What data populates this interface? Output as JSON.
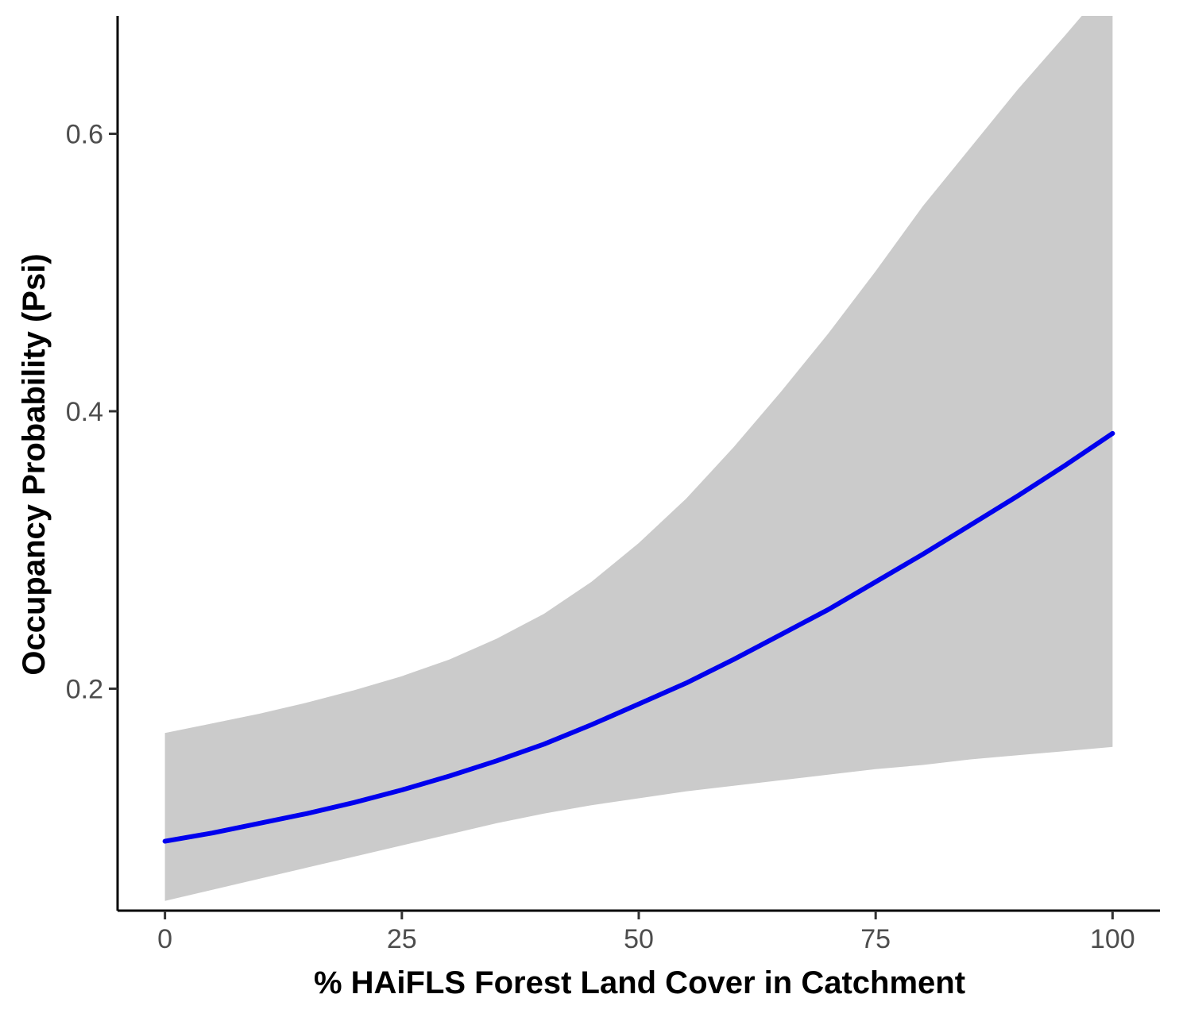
{
  "chart_data": {
    "type": "line",
    "title": "",
    "xlabel": "% HAiFLS Forest Land Cover in Catchment",
    "ylabel": "Occupancy Probability (Psi)",
    "xlim": [
      -5,
      105
    ],
    "ylim": [
      0.04,
      0.685
    ],
    "x_ticks": [
      0,
      25,
      50,
      75,
      100
    ],
    "x_tick_labels": [
      "0",
      "25",
      "50",
      "75",
      "100"
    ],
    "y_ticks": [
      0.2,
      0.4,
      0.6
    ],
    "y_tick_labels": [
      "0.2",
      "0.4",
      "0.6"
    ],
    "grid": false,
    "legend": "none",
    "line_color": "#0000ee",
    "band_color": "#cbcbcb",
    "x": [
      0,
      5,
      10,
      15,
      20,
      25,
      30,
      35,
      40,
      45,
      50,
      55,
      60,
      65,
      70,
      75,
      80,
      85,
      90,
      95,
      100
    ],
    "series": [
      {
        "values": [
          0.09,
          0.096,
          0.103,
          0.11,
          0.118,
          0.127,
          0.137,
          0.148,
          0.16,
          0.174,
          0.189,
          0.204,
          0.221,
          0.239,
          0.257,
          0.277,
          0.297,
          0.318,
          0.339,
          0.361,
          0.384
        ]
      }
    ],
    "ci_lower": [
      0.047,
      0.055,
      0.063,
      0.071,
      0.079,
      0.087,
      0.095,
      0.103,
      0.11,
      0.116,
      0.121,
      0.126,
      0.13,
      0.134,
      0.138,
      0.142,
      0.145,
      0.149,
      0.152,
      0.155,
      0.158
    ],
    "ci_upper": [
      0.168,
      0.175,
      0.182,
      0.19,
      0.199,
      0.209,
      0.221,
      0.236,
      0.254,
      0.277,
      0.305,
      0.337,
      0.374,
      0.414,
      0.456,
      0.501,
      0.548,
      0.59,
      0.632,
      0.671,
      0.711
    ]
  }
}
